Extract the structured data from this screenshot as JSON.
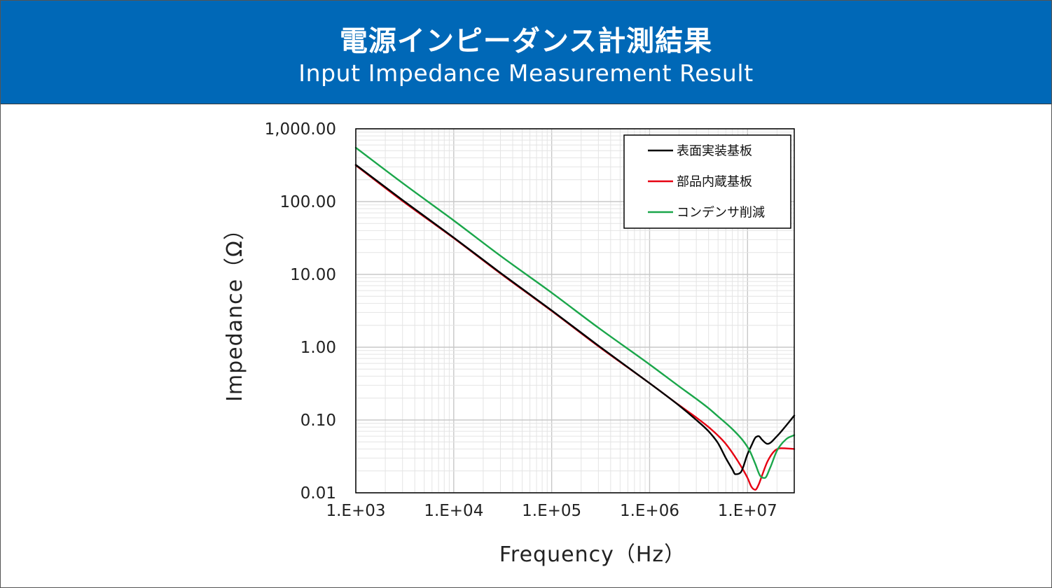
{
  "header": {
    "title_ja": "電源インピーダンス計測結果",
    "title_en": "Input Impedance Measurement Result",
    "background": "#0068b7"
  },
  "chart_data": {
    "type": "line",
    "xscale": "log",
    "yscale": "log",
    "xlim": [
      1000,
      30000000
    ],
    "ylim": [
      0.01,
      1000
    ],
    "xlabel": "Frequency（Hz）",
    "ylabel": "Impedance（Ω）",
    "xticks": [
      1000,
      10000,
      100000,
      1000000,
      10000000
    ],
    "xtick_labels": [
      "1.E+03",
      "1.E+04",
      "1.E+05",
      "1.E+06",
      "1.E+07"
    ],
    "yticks": [
      0.01,
      0.1,
      1,
      10,
      100,
      1000
    ],
    "ytick_labels": [
      "0.01",
      "0.10",
      "1.00",
      "10.00",
      "100.00",
      "1,000.00"
    ],
    "grid": true,
    "legend_position": "top-right",
    "series": [
      {
        "name": "表面実装基板",
        "color": "#000000",
        "x": [
          1000,
          3000,
          10000,
          30000,
          100000,
          300000,
          1000000,
          2000000,
          3000000,
          4000000,
          5000000,
          6000000,
          7000000,
          7500000,
          8500000,
          10000000,
          11000000,
          12000000,
          13000000,
          14000000,
          16000000,
          20000000,
          25000000,
          30000000
        ],
        "y": [
          320,
          105,
          32,
          10.5,
          3.2,
          1.05,
          0.32,
          0.158,
          0.1,
          0.07,
          0.048,
          0.03,
          0.021,
          0.018,
          0.019,
          0.034,
          0.045,
          0.057,
          0.06,
          0.054,
          0.047,
          0.06,
          0.085,
          0.115
        ]
      },
      {
        "name": "部品内蔵基板",
        "color": "#e60012",
        "x": [
          1000,
          3000,
          10000,
          30000,
          100000,
          300000,
          1000000,
          2000000,
          3000000,
          4000000,
          5000000,
          6000000,
          8000000,
          10000000,
          11000000,
          12000000,
          13000000,
          14000000,
          16000000,
          19000000,
          22000000,
          30000000
        ],
        "y": [
          315,
          102,
          31.5,
          10.3,
          3.15,
          1.03,
          0.32,
          0.16,
          0.108,
          0.08,
          0.061,
          0.047,
          0.027,
          0.016,
          0.012,
          0.011,
          0.013,
          0.017,
          0.027,
          0.038,
          0.041,
          0.04
        ]
      },
      {
        "name": "コンデンサ削減",
        "color": "#1aa64a",
        "x": [
          1000,
          3000,
          10000,
          30000,
          100000,
          300000,
          1000000,
          2000000,
          3000000,
          4000000,
          5000000,
          7000000,
          9000000,
          10500000,
          12000000,
          13500000,
          15000000,
          17000000,
          20000000,
          25000000,
          30000000
        ],
        "y": [
          550,
          180,
          55,
          18,
          5.6,
          1.85,
          0.58,
          0.29,
          0.195,
          0.145,
          0.112,
          0.075,
          0.052,
          0.038,
          0.025,
          0.017,
          0.016,
          0.022,
          0.038,
          0.055,
          0.062
        ]
      }
    ]
  }
}
